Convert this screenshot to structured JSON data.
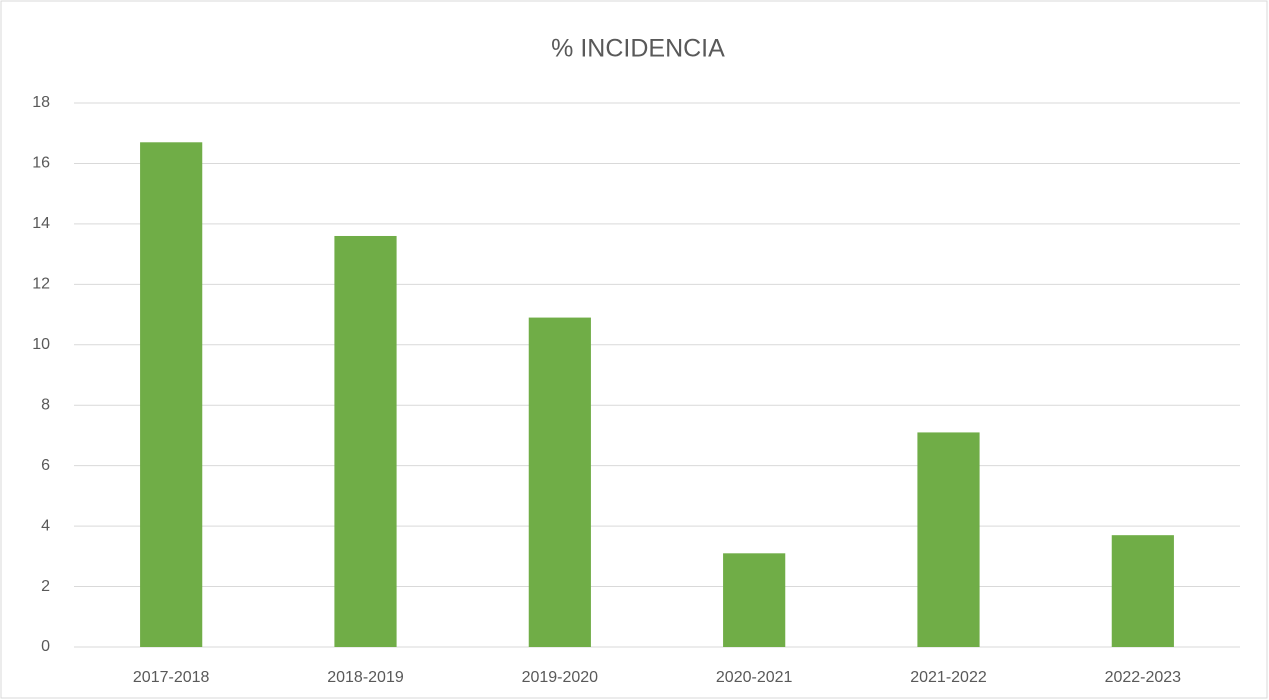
{
  "chart_data": {
    "type": "bar",
    "title": "% INCIDENCIA",
    "categories": [
      "2017-2018",
      "2018-2019",
      "2019-2020",
      "2020-2021",
      "2021-2022",
      "2022-2023"
    ],
    "values": [
      16.7,
      13.6,
      10.9,
      3.1,
      7.1,
      3.7
    ],
    "color": "#70ad47",
    "ylim": [
      0,
      18
    ],
    "yticks": [
      0,
      2,
      4,
      6,
      8,
      10,
      12,
      14,
      16,
      18
    ],
    "grid": true
  }
}
